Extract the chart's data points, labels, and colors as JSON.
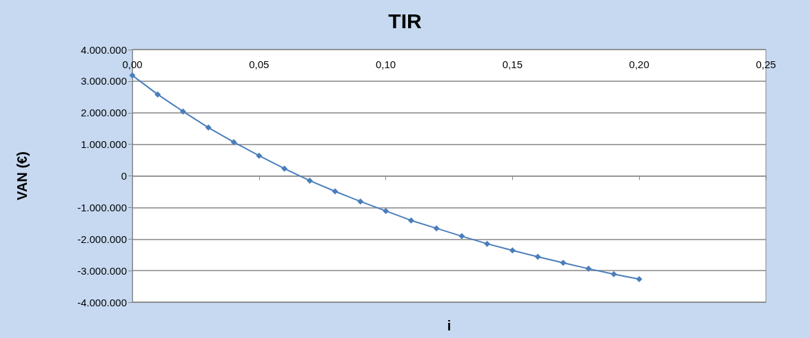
{
  "chart_data": {
    "type": "line",
    "title": "TIR",
    "xlabel": "i",
    "ylabel": "VAN (€)",
    "x": [
      0,
      0.01,
      0.02,
      0.03,
      0.04,
      0.05,
      0.06,
      0.07,
      0.08,
      0.09,
      0.1,
      0.11,
      0.12,
      0.13,
      0.14,
      0.15,
      0.16,
      0.17,
      0.18,
      0.19,
      0.2
    ],
    "series": [
      {
        "color": "#4a7ebb",
        "values": [
          3180000,
          2580000,
          2040000,
          1530000,
          1070000,
          640000,
          230000,
          -150000,
          -490000,
          -810000,
          -1110000,
          -1410000,
          -1660000,
          -1910000,
          -2150000,
          -2360000,
          -2560000,
          -2750000,
          -2940000,
          -3110000,
          -3270000
        ]
      }
    ],
    "xlim": [
      0,
      0.25
    ],
    "xticks": [
      {
        "value": 0,
        "label": "0,00"
      },
      {
        "value": 0.05,
        "label": "0,05"
      },
      {
        "value": 0.1,
        "label": "0,10"
      },
      {
        "value": 0.15,
        "label": "0,15"
      },
      {
        "value": 0.2,
        "label": "0,20"
      },
      {
        "value": 0.25,
        "label": "0,25"
      }
    ],
    "ylim": [
      -4000000,
      4000000
    ],
    "yticks": [
      {
        "value": -4000000,
        "label": "-4.000.000"
      },
      {
        "value": -3000000,
        "label": "-3.000.000"
      },
      {
        "value": -2000000,
        "label": "-2.000.000"
      },
      {
        "value": -1000000,
        "label": "-1.000.000"
      },
      0,
      {
        "value": 1000000,
        "label": "1.000.000"
      },
      {
        "value": 2000000,
        "label": "2.000.000"
      },
      {
        "value": 3000000,
        "label": "3.000.000"
      },
      {
        "value": 4000000,
        "label": "4.000.000"
      }
    ],
    "grid": "y",
    "marker": "diamond",
    "line_style": "solid"
  }
}
